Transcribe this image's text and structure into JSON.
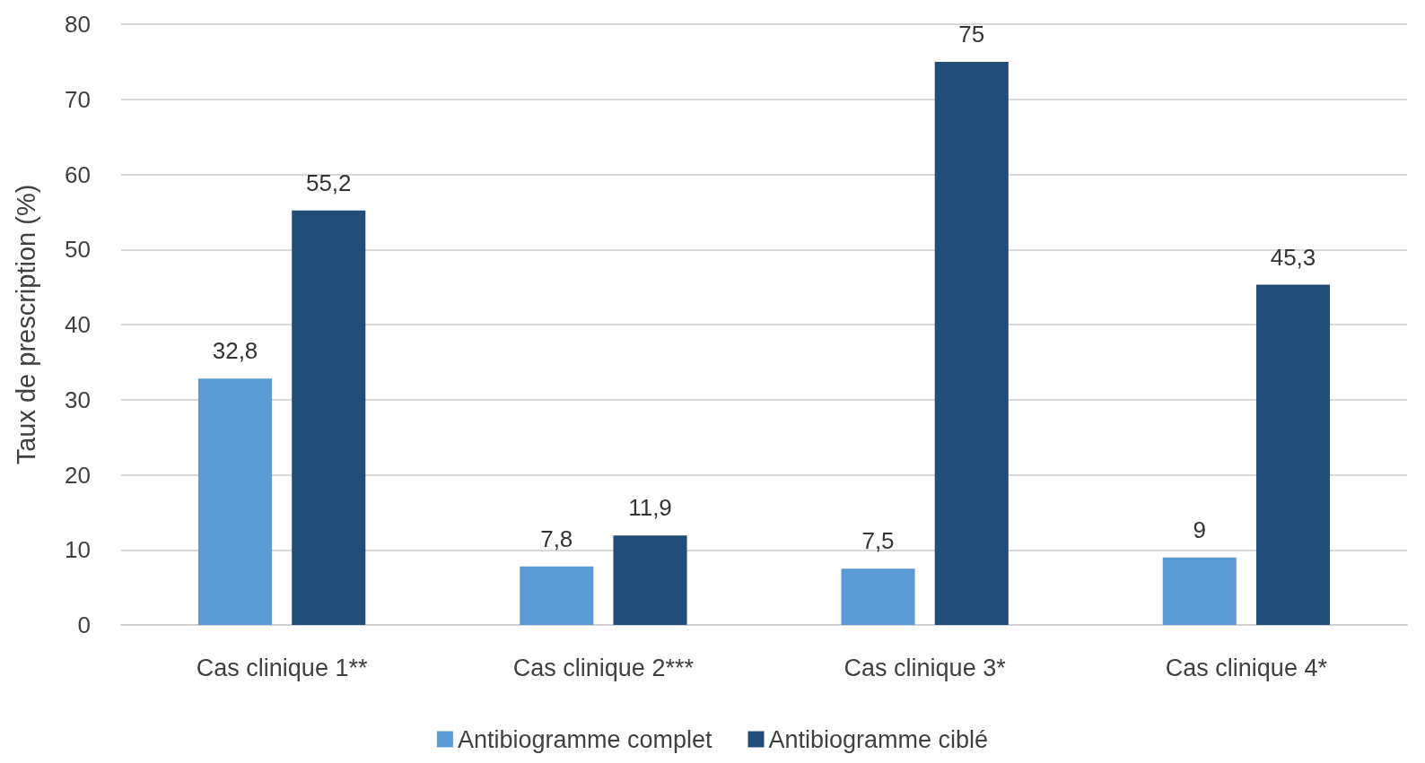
{
  "chart_data": {
    "type": "bar",
    "ylabel": "Taux de prescription (%)",
    "categories": [
      "Cas clinique 1**",
      "Cas clinique 2***",
      "Cas clinique 3*",
      "Cas clinique 4*"
    ],
    "series": [
      {
        "name": "Antibiogramme complet",
        "color": "#5b9bd5",
        "values": [
          32.8,
          7.8,
          7.5,
          9
        ],
        "value_labels": [
          "32,8",
          "7,8",
          "7,5",
          "9"
        ]
      },
      {
        "name": "Antibiogramme ciblé",
        "color": "#214e78",
        "values": [
          55.2,
          11.9,
          75,
          45.3
        ],
        "value_labels": [
          "55,2",
          "11,9",
          "75",
          "45,3"
        ]
      }
    ],
    "ylim": [
      0,
      80
    ],
    "yticks": [
      0,
      10,
      20,
      30,
      40,
      50,
      60,
      70,
      80
    ],
    "grid": "y",
    "legend": "bottom"
  }
}
